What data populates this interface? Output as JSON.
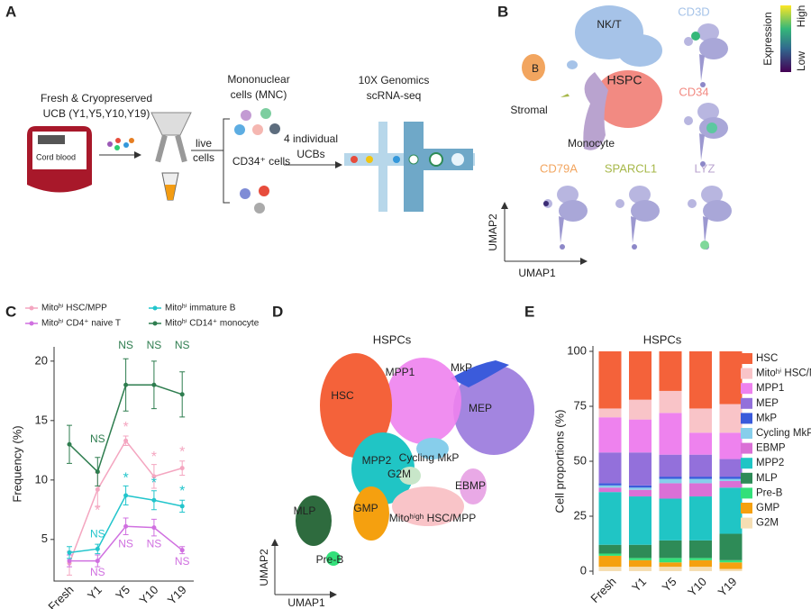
{
  "panel_labels": [
    "A",
    "B",
    "C",
    "D",
    "E"
  ],
  "workflow": {
    "sample_line1": "Fresh & Cryopreserved",
    "sample_line2": "UCB (Y1,Y5,Y10,Y19)",
    "bag_label": "Cord blood",
    "live_line1": "live",
    "live_line2": "cells",
    "mnc_line1": "Mononuclear",
    "mnc_line2": "cells (MNC)",
    "cd34": "CD34⁺ cells",
    "pool_line1": "4 individual",
    "pool_line2": "UCBs",
    "seq_line1": "10X Genomics",
    "seq_line2": "scRNA-seq"
  },
  "umap_overview": {
    "clusters": [
      "NK/T",
      "B",
      "HSPC",
      "Stromal",
      "Monocyte"
    ],
    "genes": [
      "CD3D",
      "CD34",
      "CD79A",
      "SPARCL1",
      "LYZ"
    ],
    "colorbar_title": "Expression",
    "colorbar_high": "High",
    "colorbar_low": "Low",
    "x_label": "UMAP1",
    "y_label": "UMAP2"
  },
  "chart_data": [
    {
      "type": "line",
      "y_label": "Frequency (%)",
      "categories": [
        "Fresh",
        "Y1",
        "Y5",
        "Y10",
        "Y19"
      ],
      "series": [
        {
          "name": "Mitoʰⁱ HSC/MPP",
          "color": "#f4a6c0",
          "values": [
            3.0,
            9.2,
            13.3,
            10.3,
            11.0
          ],
          "errors": [
            1.0,
            1.4,
            0.4,
            1.0,
            0.6
          ]
        },
        {
          "name": "Mitoʰⁱ CD4⁺ naive T",
          "color": "#d070e0",
          "values": [
            3.2,
            3.2,
            6.1,
            6.0,
            4.1
          ],
          "errors": [
            0.5,
            0.5,
            0.7,
            0.7,
            0.3
          ]
        },
        {
          "name": "Mitoʰⁱ immature B",
          "color": "#22c5cc",
          "values": [
            3.9,
            4.2,
            8.7,
            8.3,
            7.8
          ],
          "errors": [
            0.5,
            0.4,
            0.8,
            0.8,
            0.5
          ]
        },
        {
          "name": "Mitoʰⁱ CD14⁺ monocyte",
          "color": "#2e7d4f",
          "values": [
            13.0,
            10.7,
            18.0,
            18.0,
            17.2
          ],
          "errors": [
            1.6,
            1.2,
            2.2,
            2.0,
            1.9
          ]
        }
      ],
      "ylim": [
        1.5,
        21.2
      ],
      "yticks": [
        5,
        10,
        15,
        20
      ],
      "legend": "top",
      "annotations": [
        {
          "text": "NS",
          "x": "Y1",
          "y": 13.4,
          "color": "#2e7d4f"
        },
        {
          "text": "NS",
          "x": "Y5",
          "y": 21.3,
          "color": "#2e7d4f"
        },
        {
          "text": "NS",
          "x": "Y10",
          "y": 21.3,
          "color": "#2e7d4f"
        },
        {
          "text": "NS",
          "x": "Y19",
          "y": 21.3,
          "color": "#2e7d4f"
        },
        {
          "text": "*",
          "x": "Y1",
          "y": 7.4,
          "color": "#f4a6c0"
        },
        {
          "text": "*",
          "x": "Y5",
          "y": 14.4,
          "color": "#f4a6c0"
        },
        {
          "text": "*",
          "x": "Y10",
          "y": 11.9,
          "color": "#f4a6c0"
        },
        {
          "text": "*",
          "x": "Y19",
          "y": 12.3,
          "color": "#f4a6c0"
        },
        {
          "text": "NS",
          "x": "Y1",
          "y": 5.4,
          "color": "#22c5cc"
        },
        {
          "text": "*",
          "x": "Y5",
          "y": 10.1,
          "color": "#22c5cc"
        },
        {
          "text": "*",
          "x": "Y10",
          "y": 9.7,
          "color": "#22c5cc"
        },
        {
          "text": "*",
          "x": "Y19",
          "y": 9.0,
          "color": "#22c5cc"
        },
        {
          "text": "NS",
          "x": "Y1",
          "y": 2.2,
          "color": "#d070e0"
        },
        {
          "text": "NS",
          "x": "Y5",
          "y": 4.6,
          "color": "#d070e0"
        },
        {
          "text": "NS",
          "x": "Y10",
          "y": 4.6,
          "color": "#d070e0"
        },
        {
          "text": "NS",
          "x": "Y19",
          "y": 3.1,
          "color": "#d070e0"
        }
      ]
    },
    {
      "type": "stacked_bar",
      "title": "HSPCs",
      "y_label": "Cell proportions (%)",
      "categories": [
        "Fresh",
        "Y1",
        "Y5",
        "Y10",
        "Y19"
      ],
      "series": [
        {
          "name": "HSC",
          "color": "#f4623a",
          "values": [
            26,
            22,
            18,
            26,
            24
          ]
        },
        {
          "name": "Mitoʰⁱ HSC/MPP",
          "color": "#f9c4c8",
          "values": [
            4,
            9,
            10,
            11,
            13
          ]
        },
        {
          "name": "MPP1",
          "color": "#ee82ee",
          "values": [
            16,
            15,
            19,
            10,
            12
          ]
        },
        {
          "name": "MEP",
          "color": "#9370db",
          "values": [
            14,
            15,
            10,
            10,
            8
          ]
        },
        {
          "name": "MkP",
          "color": "#3b5bdb",
          "values": [
            1,
            1,
            1,
            1,
            1
          ]
        },
        {
          "name": "Cycling MkP",
          "color": "#87ceeb",
          "values": [
            1,
            1,
            2,
            2,
            1
          ]
        },
        {
          "name": "EBMP",
          "color": "#da70d6",
          "values": [
            2,
            3,
            7,
            6,
            3
          ]
        },
        {
          "name": "MPP2",
          "color": "#20c5c5",
          "values": [
            24,
            22,
            19,
            20,
            21
          ]
        },
        {
          "name": "MLP",
          "color": "#2e8b57",
          "values": [
            4,
            6,
            8,
            8,
            12
          ]
        },
        {
          "name": "Pre-B",
          "color": "#33e07a",
          "values": [
            1,
            1,
            2,
            1,
            1
          ]
        },
        {
          "name": "GMP",
          "color": "#f5a00f",
          "values": [
            5,
            3,
            2,
            3,
            3
          ]
        },
        {
          "name": "G2M",
          "color": "#f5deb3",
          "values": [
            2,
            2,
            2,
            2,
            1
          ]
        }
      ],
      "ylim": [
        0,
        100
      ],
      "yticks": [
        0,
        25,
        50,
        75,
        100
      ],
      "legend": "right"
    }
  ],
  "umap_hspc": {
    "title": "HSPCs",
    "clusters": [
      "HSC",
      "MPP1",
      "MkP",
      "MEP",
      "Cycling MkP",
      "G2M",
      "MPP2",
      "EBMP",
      "MLP",
      "GMP",
      "Mitoʰⁱᵍʰ HSC/MPP",
      "Pre-B"
    ],
    "x_label": "UMAP1",
    "y_label": "UMAP2"
  }
}
